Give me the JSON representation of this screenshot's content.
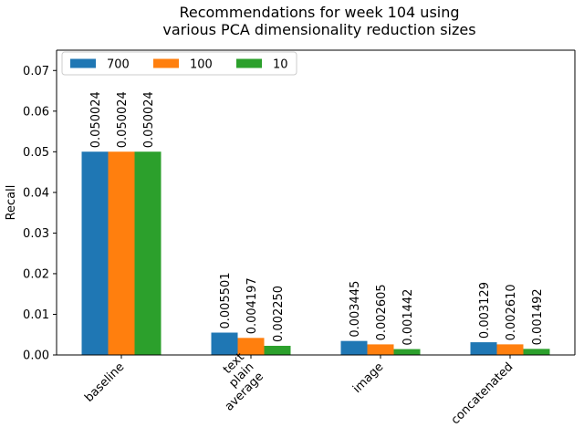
{
  "chart_data": {
    "type": "bar",
    "title": [
      "Recommendations for week 104 using",
      "various PCA dimensionality reduction sizes"
    ],
    "xlabel": "",
    "ylabel": "Recall",
    "categories": [
      [
        "baseline"
      ],
      [
        "text",
        "plain",
        "average"
      ],
      [
        "image"
      ],
      [
        "concatenated"
      ]
    ],
    "series": [
      {
        "name": "700",
        "color": "#1f77b4",
        "values": [
          0.050024,
          0.005501,
          0.003445,
          0.003129
        ],
        "labels": [
          "0.050024",
          "0.005501",
          "0.003445",
          "0.003129"
        ]
      },
      {
        "name": "100",
        "color": "#ff7f0e",
        "values": [
          0.050024,
          0.004197,
          0.002605,
          0.00261
        ],
        "labels": [
          "0.050024",
          "0.004197",
          "0.002605",
          "0.002610"
        ]
      },
      {
        "name": "10",
        "color": "#2ca02c",
        "values": [
          0.050024,
          0.00225,
          0.001442,
          0.001492
        ],
        "labels": [
          "0.050024",
          "0.002250",
          "0.001442",
          "0.001492"
        ]
      }
    ],
    "ylim": [
      0,
      0.075
    ],
    "yticks": [
      0.0,
      0.01,
      0.02,
      0.03,
      0.04,
      0.05,
      0.06,
      0.07
    ],
    "ytick_labels": [
      "0.00",
      "0.01",
      "0.02",
      "0.03",
      "0.04",
      "0.05",
      "0.06",
      "0.07"
    ],
    "grid": false,
    "legend_position": "top-left",
    "legend_columns": 3
  }
}
